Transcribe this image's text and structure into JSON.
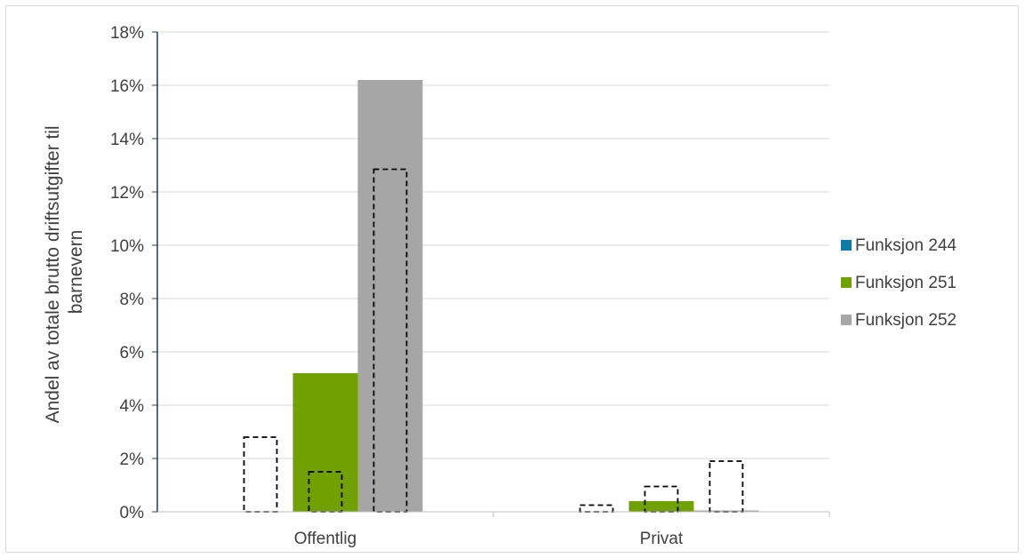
{
  "chart_data": {
    "type": "bar",
    "categories": [
      "Offentlig",
      "Privat"
    ],
    "ylabel_lines": [
      "Andel av totale brutto driftsutgifter til",
      "barnevern"
    ],
    "ylim": [
      0,
      18
    ],
    "yticks": [
      0,
      2,
      4,
      6,
      8,
      10,
      12,
      14,
      16,
      18
    ],
    "ytick_suffix": "%",
    "grid": true,
    "legend_position": "right",
    "series": [
      {
        "name": "Funksjon 244",
        "color": "#0e7aa6",
        "values": [
          0.0,
          0.0
        ]
      },
      {
        "name": "Funksjon 251",
        "color": "#70a100",
        "values": [
          5.2,
          0.4
        ]
      },
      {
        "name": "Funksjon 252",
        "color": "#a6a6a6",
        "values": [
          16.2,
          0.05
        ]
      }
    ],
    "dashed_outline_values": [
      [
        2.8,
        0.25
      ],
      [
        1.5,
        0.95
      ],
      [
        12.85,
        1.9
      ]
    ]
  }
}
